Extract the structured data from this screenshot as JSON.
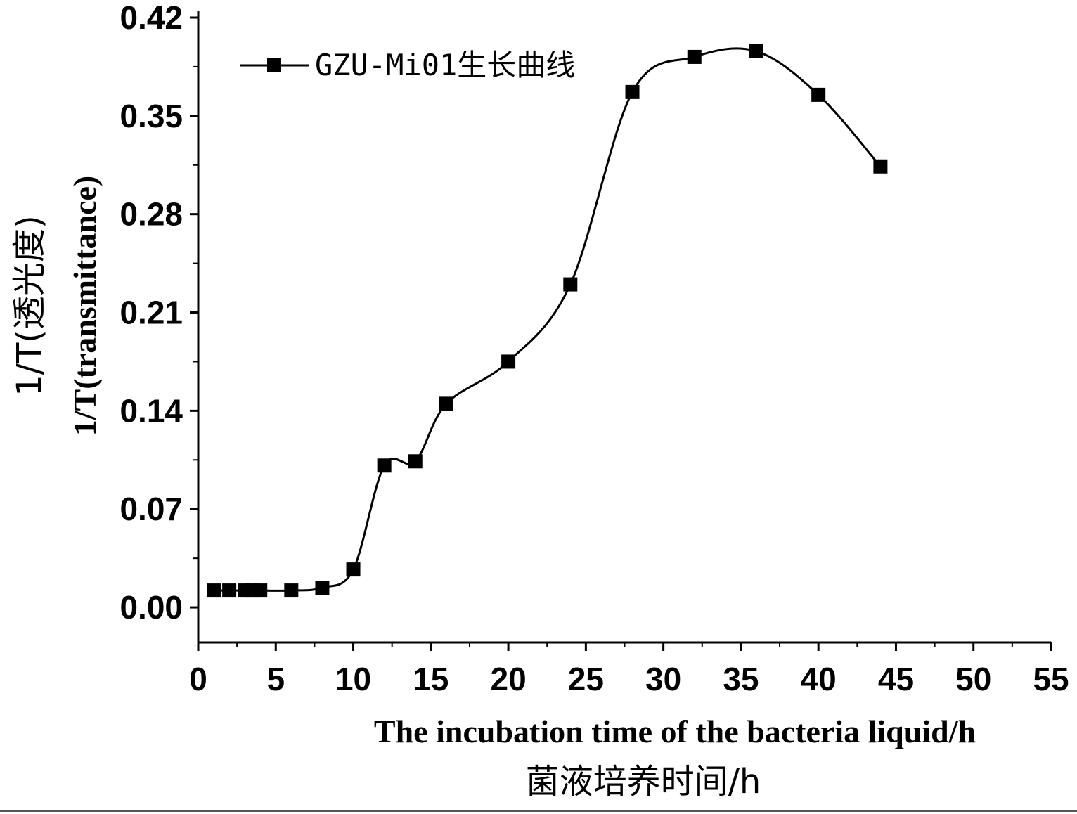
{
  "chart_data": {
    "type": "line",
    "x_label_en": "The incubation time of the bacteria liquid/h",
    "x_label_cn": "菌液培养时间/h",
    "y_label_en": "1/T(transmittance)",
    "y_label_cn": "1/T(透光度)",
    "xlim": [
      0,
      55
    ],
    "ylim": [
      -0.025,
      0.425
    ],
    "x_ticks": [
      0,
      5,
      10,
      15,
      20,
      25,
      30,
      35,
      40,
      45,
      50,
      55
    ],
    "x_tick_labels": [
      "0",
      "5",
      "10",
      "15",
      "20",
      "25",
      "30",
      "35",
      "40",
      "45",
      "50",
      "55"
    ],
    "y_ticks": [
      0.0,
      0.07,
      0.14,
      0.21,
      0.28,
      0.35,
      0.42
    ],
    "y_tick_labels": [
      "0.00",
      "0.07",
      "0.14",
      "0.21",
      "0.28",
      "0.35",
      "0.42"
    ],
    "grid": false,
    "legend_position": "top-left",
    "series": [
      {
        "name": "GZU-Mi01生长曲线",
        "marker": "square",
        "smooth": true,
        "color": "#000000",
        "x": [
          1,
          2,
          3,
          3.5,
          4,
          6,
          8,
          10,
          12,
          14,
          16,
          20,
          24,
          28,
          32,
          36,
          40,
          44
        ],
        "y": [
          0.012,
          0.012,
          0.012,
          0.012,
          0.012,
          0.012,
          0.014,
          0.027,
          0.101,
          0.104,
          0.145,
          0.175,
          0.23,
          0.367,
          0.392,
          0.396,
          0.365,
          0.314
        ]
      }
    ]
  }
}
